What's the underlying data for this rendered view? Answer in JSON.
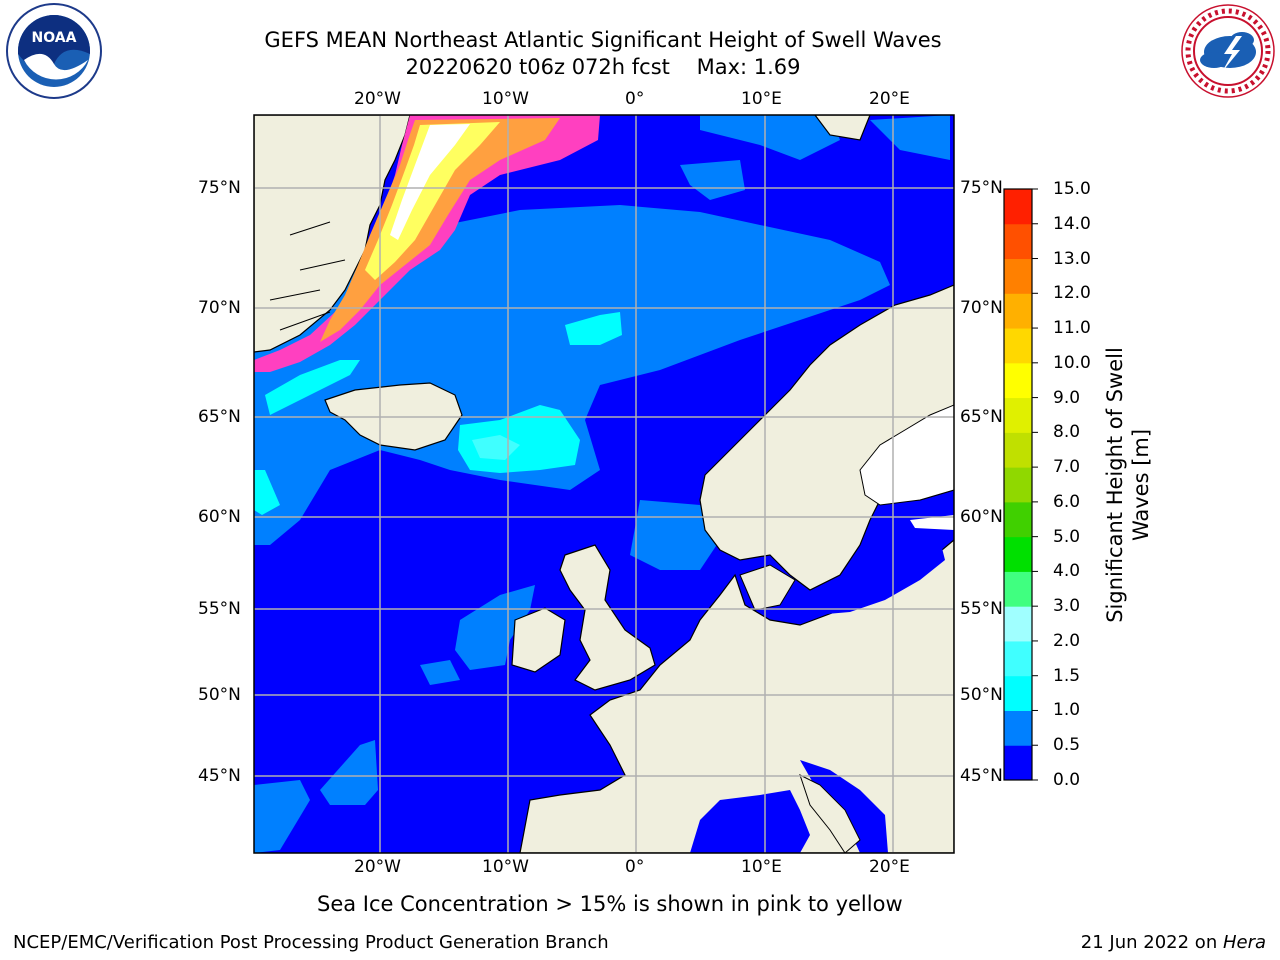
{
  "title": {
    "line1": "GEFS MEAN Northeast Atlantic Significant Height of Swell Waves",
    "line2": "20220620 t06z 072h fcst    Max: 1.69"
  },
  "logos": {
    "left": "noara-logo",
    "right": "nws-logo"
  },
  "map": {
    "lon_range": [
      -30,
      25
    ],
    "lat_range": [
      41,
      78
    ],
    "lon_ticks": [
      "20°W",
      "10°W",
      "0°",
      "10°E",
      "20°E"
    ],
    "lat_ticks": [
      "75°N",
      "70°N",
      "65°N",
      "60°N",
      "55°N",
      "50°N",
      "45°N"
    ],
    "colors": {
      "ocean_deep": "#0000ff",
      "ocean_mid": "#0080ff",
      "ocean_light": "#00ffff",
      "land": "#f0efde",
      "ice_pink": "#ff40c0",
      "ice_orange": "#ffa040",
      "ice_yellow": "#ffff60",
      "grid": "#b0b0b0"
    },
    "caption": "Sea Ice Concentration > 15% is shown in pink to yellow"
  },
  "colorbar": {
    "label_line1": "Significant Height of Swell",
    "label_line2": "Waves [m]",
    "ticks": [
      "15.0",
      "14.0",
      "13.0",
      "12.0",
      "11.0",
      "10.0",
      "9.0",
      "8.0",
      "7.0",
      "6.0",
      "5.0",
      "4.0",
      "3.0",
      "2.0",
      "1.5",
      "1.0",
      "0.5",
      "0.0"
    ],
    "colors": [
      "#0000ff",
      "#0080ff",
      "#00ffff",
      "#40ffff",
      "#a0ffff",
      "#40ff80",
      "#00e000",
      "#40d000",
      "#90d800",
      "#c0e000",
      "#e0f000",
      "#ffff00",
      "#ffd800",
      "#ffb000",
      "#ff8000",
      "#ff5000",
      "#ff2000",
      "#ff0000"
    ]
  },
  "footer": {
    "left": "NCEP/EMC/Verification Post Processing Product Generation Branch",
    "right_prefix": "21 Jun 2022 on ",
    "right_host": "Hera"
  }
}
